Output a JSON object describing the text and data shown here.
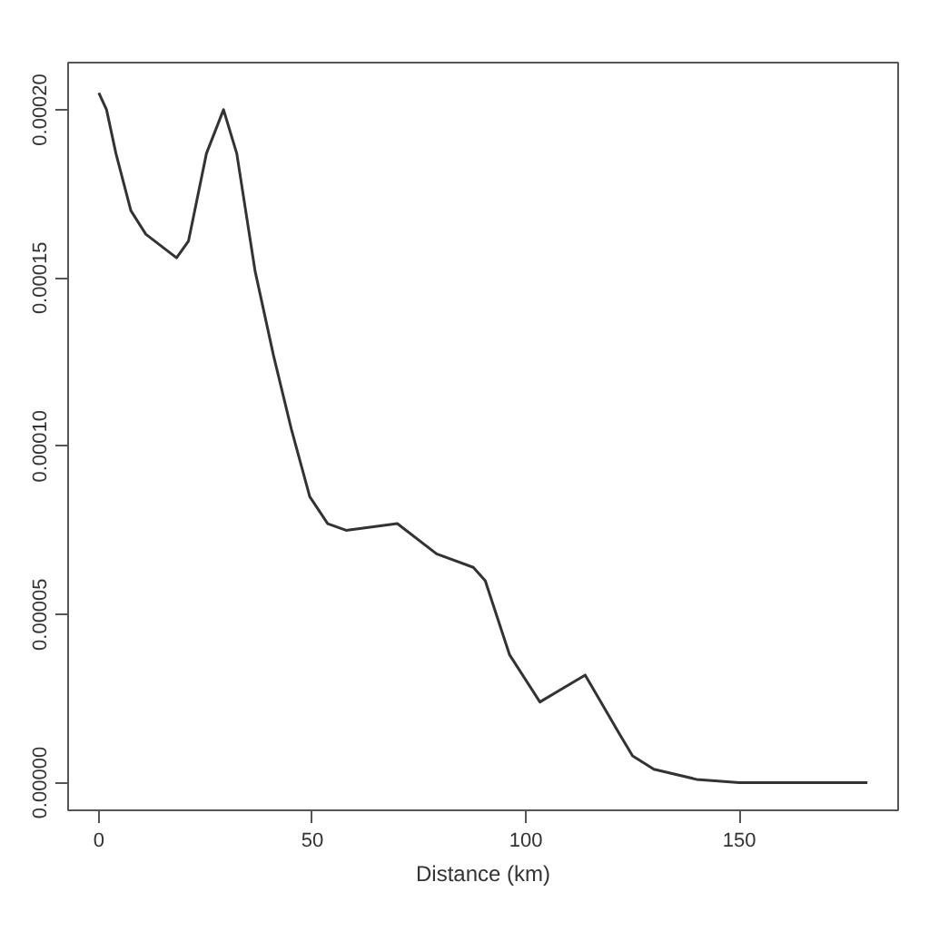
{
  "chart_data": {
    "type": "line",
    "xlabel": "Distance (km)",
    "x": [
      0,
      1.8,
      4,
      7.5,
      11,
      18.2,
      21,
      25.2,
      29.2,
      32.3,
      36.6,
      40.9,
      45.1,
      49.4,
      53.6,
      57.9,
      69.9,
      79.1,
      87.7,
      90.5,
      96.2,
      103.3,
      113.9,
      121.7,
      125,
      130,
      140,
      150,
      180
    ],
    "series": [
      {
        "color": "#333333",
        "values": [
          0.000205,
          0.0002,
          0.000187,
          0.00017,
          0.000163,
          0.000156,
          0.000161,
          0.000187,
          0.0002,
          0.000187,
          0.000152,
          0.000127,
          0.000105,
          8.5e-05,
          7.7e-05,
          7.5e-05,
          7.7e-05,
          6.8e-05,
          6.4e-05,
          6e-05,
          3.8e-05,
          2.4e-05,
          3.2e-05,
          1.5e-05,
          8e-06,
          4e-06,
          1e-06,
          0,
          0
        ]
      }
    ],
    "xlim": [
      -7.2,
      187.2
    ],
    "ylim": [
      -8.2e-06,
      0.000214
    ],
    "xticks": [
      0,
      50,
      100,
      150
    ],
    "yticks": [
      {
        "value": 0,
        "label": "0.00000"
      },
      {
        "value": 5e-05,
        "label": "0.00005"
      },
      {
        "value": 0.0001,
        "label": "0.00010"
      },
      {
        "value": 0.00015,
        "label": "0.00015"
      },
      {
        "value": 0.0002,
        "label": "0.00020"
      }
    ],
    "grid": false,
    "marker": "none",
    "line_style": "solid"
  }
}
